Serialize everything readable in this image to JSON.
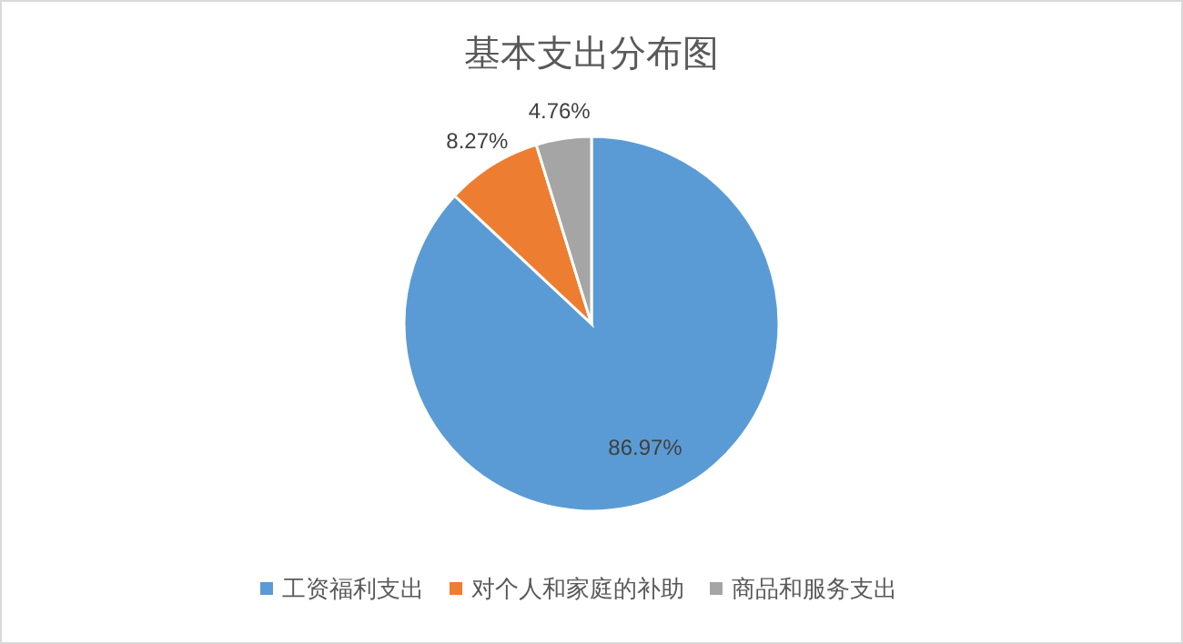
{
  "chart_data": {
    "type": "pie",
    "title": "基本支出分布图",
    "categories": [
      "工资福利支出",
      "对个人和家庭的补助",
      "商品和服务支出"
    ],
    "values": [
      86.97,
      8.27,
      4.76
    ],
    "colors": [
      "#5b9bd5",
      "#ed7d31",
      "#a5a5a5"
    ],
    "value_labels": [
      "86.97%",
      "8.27%",
      "4.76%"
    ],
    "legend": "bottom"
  }
}
